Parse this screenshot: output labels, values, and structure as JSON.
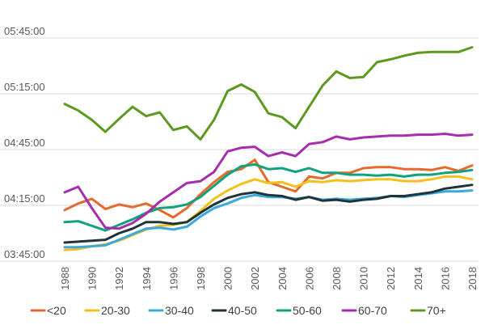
{
  "chart_data": {
    "type": "line",
    "title": "",
    "xlabel": "",
    "ylabel": "",
    "grid": true,
    "legend_position": "bottom",
    "ylim_minutes": [
      225,
      345
    ],
    "y_ticks": [
      {
        "label": "03:45:00",
        "minutes": 225
      },
      {
        "label": "04:15:00",
        "minutes": 255
      },
      {
        "label": "04:45:00",
        "minutes": 285
      },
      {
        "label": "05:15:00",
        "minutes": 315
      },
      {
        "label": "05:45:00",
        "minutes": 345
      }
    ],
    "x": [
      1988,
      1989,
      1990,
      1991,
      1992,
      1993,
      1994,
      1995,
      1996,
      1997,
      1998,
      1999,
      2000,
      2001,
      2002,
      2003,
      2004,
      2005,
      2006,
      2007,
      2008,
      2009,
      2010,
      2011,
      2012,
      2013,
      2014,
      2015,
      2016,
      2017,
      2018
    ],
    "x_tick_labels": [
      "1988",
      "1990",
      "1992",
      "1994",
      "1996",
      "1998",
      "2000",
      "2002",
      "2004",
      "2006",
      "2008",
      "2010",
      "2012",
      "2014",
      "2016",
      "2018"
    ],
    "series": [
      {
        "name": "<20",
        "color": "#e8692d",
        "values": [
          252.5,
          256,
          258.5,
          253,
          255.5,
          254,
          256,
          252.5,
          248.5,
          253.5,
          261,
          267.5,
          273,
          274.5,
          279.5,
          267.5,
          265,
          262.5,
          270.5,
          269.5,
          272.5,
          272.5,
          275,
          275.5,
          275.5,
          274.5,
          274.5,
          274,
          275.5,
          273.5,
          276.5
        ]
      },
      {
        "name": "20-30",
        "color": "#f2c11d",
        "values": [
          231,
          231.5,
          233,
          234,
          236,
          239,
          242,
          244,
          244.5,
          246,
          252,
          258.5,
          263,
          266.5,
          269,
          267,
          267.5,
          265,
          268,
          267.5,
          268.5,
          268,
          268.5,
          269,
          269,
          268,
          268,
          269,
          270.5,
          270.5,
          269
        ]
      },
      {
        "name": "30-40",
        "color": "#3ca8dc",
        "values": [
          232.5,
          232.5,
          233,
          233.5,
          236.5,
          239.5,
          242.5,
          243,
          242,
          243.5,
          249,
          253.5,
          256,
          259,
          260.5,
          259.5,
          259.5,
          258.5,
          259.5,
          258,
          258.5,
          258,
          258.5,
          259,
          260,
          259.5,
          260.5,
          261.5,
          262.5,
          262.5,
          263
        ]
      },
      {
        "name": "40-50",
        "color": "#1f3438",
        "values": [
          235,
          235.5,
          236,
          236.5,
          240,
          242.5,
          246,
          246,
          245,
          246,
          251,
          255.5,
          259,
          261,
          262,
          260.5,
          260,
          258,
          259.5,
          257.5,
          258,
          257,
          258,
          258.5,
          260,
          260,
          261,
          262,
          264,
          265,
          266
        ]
      },
      {
        "name": "50-60",
        "color": "#10a27c",
        "values": [
          246,
          246.5,
          244,
          241.5,
          244.5,
          247.5,
          251,
          253.5,
          254,
          255.5,
          259.5,
          265.5,
          271.5,
          276,
          277,
          274.5,
          275,
          273,
          275,
          272.5,
          272.5,
          271.5,
          271.5,
          271,
          271.5,
          270.5,
          271.5,
          271.5,
          272.5,
          273,
          274
        ]
      },
      {
        "name": "60-70",
        "color": "#a52eae",
        "values": [
          262,
          265,
          253.5,
          243,
          242.5,
          245.5,
          250.5,
          257,
          262,
          267,
          268,
          273,
          284,
          286,
          286.5,
          281.5,
          283.5,
          281.5,
          288,
          289,
          292,
          290.5,
          291.5,
          292,
          292.5,
          292.5,
          293,
          293,
          293.5,
          292.5,
          293
        ]
      },
      {
        "name": "70+",
        "color": "#5c9a1f",
        "values": [
          309.5,
          306,
          301,
          294.5,
          301.5,
          308,
          303,
          305,
          295.5,
          297.5,
          290.5,
          301,
          316.5,
          320,
          316,
          304.5,
          302.5,
          296.5,
          308,
          319.5,
          327,
          323.5,
          324,
          332,
          333.5,
          335.5,
          337,
          337.5,
          337.5,
          337.5,
          340
        ]
      }
    ]
  }
}
